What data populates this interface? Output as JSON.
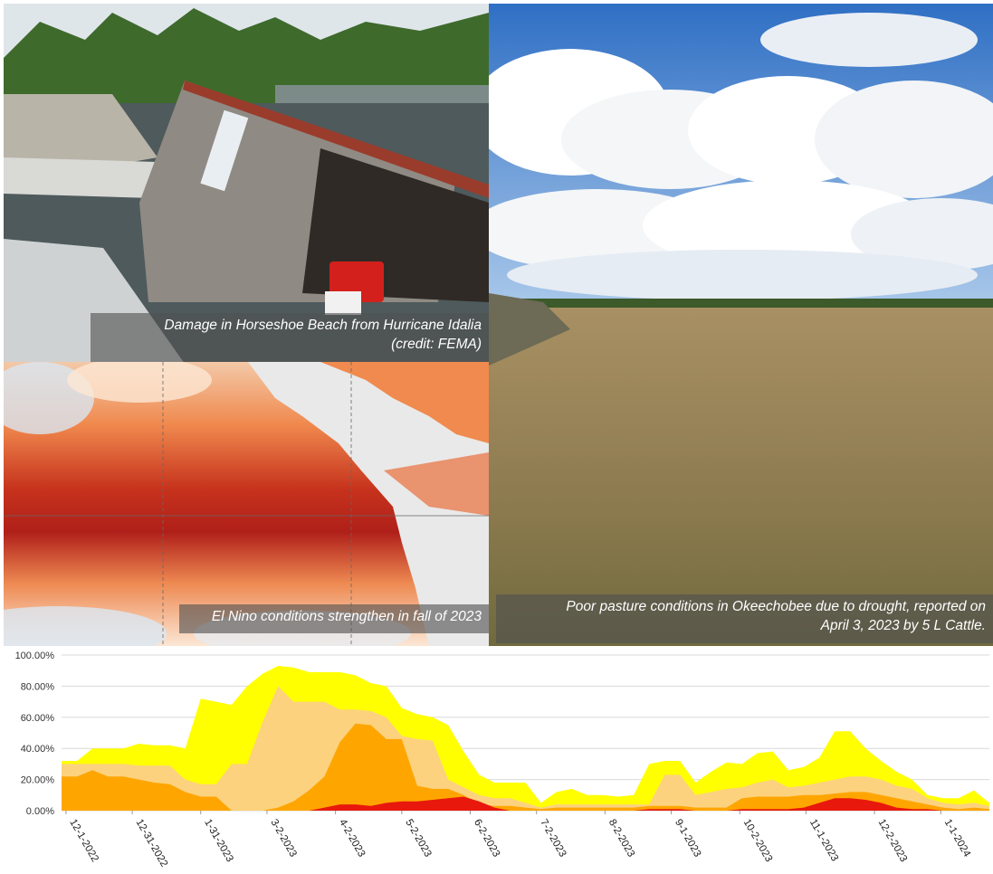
{
  "captions": {
    "damage_line1": "Damage in Horseshoe Beach from Hurricane Idalia",
    "damage_line2": "(credit: FEMA)",
    "elnino": "El Nino conditions strengthen in fall of 2023",
    "pasture_line1": "Poor pasture conditions in Okeechobee due to drought, reported on",
    "pasture_line2": "April 3, 2023 by 5 L Cattle."
  },
  "chart_data": {
    "type": "area",
    "stacked": false,
    "ylim": [
      0,
      100
    ],
    "yticks": [
      "0.00%",
      "20.00%",
      "40.00%",
      "60.00%",
      "80.00%",
      "100.00%"
    ],
    "grid": true,
    "xtick_labels": [
      "12-1-2022",
      "12-31-2022",
      "1-31-2023",
      "3-2-2023",
      "4-2-2023",
      "5-2-2023",
      "6-2-2023",
      "7-2-2023",
      "8-2-2023",
      "9-1-2023",
      "10-2-2023",
      "11-1-2023",
      "12-2-2023",
      "1-1-2024"
    ],
    "x": [
      "2022-11-29",
      "2022-12-06",
      "2022-12-13",
      "2022-12-20",
      "2022-12-27",
      "2023-01-03",
      "2023-01-10",
      "2023-01-17",
      "2023-01-24",
      "2023-01-31",
      "2023-02-07",
      "2023-02-14",
      "2023-02-21",
      "2023-02-28",
      "2023-03-07",
      "2023-03-14",
      "2023-03-21",
      "2023-03-28",
      "2023-04-04",
      "2023-04-11",
      "2023-04-18",
      "2023-04-25",
      "2023-05-02",
      "2023-05-09",
      "2023-05-16",
      "2023-05-23",
      "2023-05-30",
      "2023-06-06",
      "2023-06-13",
      "2023-06-20",
      "2023-06-27",
      "2023-07-04",
      "2023-07-11",
      "2023-07-18",
      "2023-07-25",
      "2023-08-01",
      "2023-08-08",
      "2023-08-15",
      "2023-08-22",
      "2023-08-29",
      "2023-09-05",
      "2023-09-12",
      "2023-09-19",
      "2023-09-26",
      "2023-10-03",
      "2023-10-10",
      "2023-10-17",
      "2023-10-24",
      "2023-10-31",
      "2023-11-07",
      "2023-11-14",
      "2023-11-21",
      "2023-11-28",
      "2023-12-05",
      "2023-12-12",
      "2023-12-19",
      "2023-12-26",
      "2024-01-02",
      "2024-01-09",
      "2024-01-16",
      "2024-01-23"
    ],
    "series": [
      {
        "color": "#ffff00",
        "values": [
          32,
          32,
          40,
          40,
          40,
          43,
          42,
          42,
          40,
          72,
          70,
          68,
          80,
          88,
          93,
          92,
          89,
          89,
          89,
          87,
          82,
          80,
          66,
          62,
          60,
          55,
          38,
          23,
          18,
          18,
          18,
          5,
          12,
          14,
          10,
          10,
          9,
          10,
          30,
          32,
          32,
          18,
          25,
          31,
          30,
          37,
          38,
          26,
          28,
          34,
          51,
          51,
          40,
          32,
          25,
          20,
          10,
          8,
          8,
          13,
          5
        ]
      },
      {
        "color": "#fcd27e",
        "values": [
          30,
          30,
          30,
          30,
          30,
          29,
          29,
          29,
          20,
          17,
          17,
          30,
          30,
          57,
          80,
          70,
          70,
          70,
          65,
          65,
          64,
          60,
          48,
          46,
          45,
          20,
          15,
          10,
          8,
          8,
          5,
          2,
          4,
          4,
          4,
          4,
          4,
          4,
          4,
          23,
          23,
          10,
          12,
          14,
          15,
          18,
          20,
          15,
          16,
          18,
          20,
          22,
          22,
          20,
          16,
          14,
          8,
          5,
          4,
          5,
          3
        ]
      },
      {
        "color": "#ffa500",
        "values": [
          22,
          22,
          26,
          22,
          22,
          20,
          18,
          17,
          12,
          9,
          9,
          0,
          0,
          0,
          2,
          6,
          13,
          22,
          44,
          56,
          55,
          46,
          46,
          16,
          14,
          14,
          10,
          4,
          3,
          3,
          2,
          1,
          2,
          2,
          2,
          2,
          2,
          2,
          3,
          3,
          3,
          2,
          2,
          2,
          8,
          9,
          9,
          9,
          10,
          10,
          11,
          12,
          12,
          10,
          8,
          6,
          4,
          2,
          1,
          2,
          1
        ]
      },
      {
        "color": "#e8180c",
        "values": [
          0,
          0,
          0,
          0,
          0,
          0,
          0,
          0,
          0,
          0,
          0,
          0,
          0,
          0,
          0,
          0,
          0,
          2,
          4,
          4,
          3,
          5,
          6,
          6,
          7,
          8,
          9,
          6,
          2,
          0,
          0,
          0,
          0,
          0,
          0,
          0,
          0,
          0,
          1,
          1,
          1,
          0,
          0,
          0,
          1,
          1,
          1,
          1,
          2,
          5,
          8,
          8,
          7,
          5,
          2,
          1,
          1,
          0,
          0,
          0,
          0
        ]
      }
    ]
  }
}
